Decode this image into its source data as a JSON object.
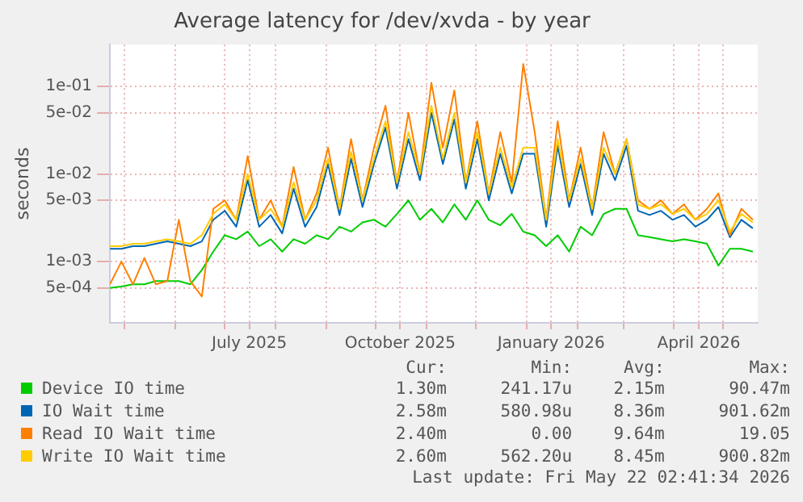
{
  "chart_data": {
    "type": "line",
    "title": "Average latency for /dev/xvda - by year",
    "ylabel": "seconds",
    "log": "y",
    "grid": true,
    "legend": "bottom",
    "marker": "none",
    "line_style": "solid",
    "xlim": [
      "2025-04-22",
      "2026-05-22"
    ],
    "xticks": [
      {
        "value": "2025-05-01",
        "label": null
      },
      {
        "value": "2025-06-01",
        "label": null
      },
      {
        "value": "2025-07-01",
        "label": null
      },
      {
        "value": "2025-07-16",
        "label": "July 2025"
      },
      {
        "value": "2025-08-01",
        "label": null
      },
      {
        "value": "2025-09-01",
        "label": null
      },
      {
        "value": "2025-10-01",
        "label": null
      },
      {
        "value": "2025-10-16",
        "label": "October 2025"
      },
      {
        "value": "2025-11-01",
        "label": null
      },
      {
        "value": "2025-12-01",
        "label": null
      },
      {
        "value": "2026-01-01",
        "label": null
      },
      {
        "value": "2026-01-16",
        "label": "January 2026"
      },
      {
        "value": "2026-02-01",
        "label": null
      },
      {
        "value": "2026-03-01",
        "label": null
      },
      {
        "value": "2026-04-01",
        "label": null
      },
      {
        "value": "2026-04-16",
        "label": "April 2026"
      },
      {
        "value": "2026-05-01",
        "label": null
      }
    ],
    "ylim": [
      0.0002,
      0.3
    ],
    "yticks": [
      {
        "value": 0.0005,
        "label": "5e-04"
      },
      {
        "value": 0.001,
        "label": "1e-03"
      },
      {
        "value": 0.005,
        "label": "5e-03"
      },
      {
        "value": 0.01,
        "label": "1e-02"
      },
      {
        "value": 0.05,
        "label": "5e-02"
      },
      {
        "value": 0.1,
        "label": "1e-01"
      }
    ],
    "x": [
      "2025-04-22",
      "2025-04-29",
      "2025-05-06",
      "2025-05-13",
      "2025-05-20",
      "2025-05-27",
      "2025-06-03",
      "2025-06-10",
      "2025-06-17",
      "2025-06-24",
      "2025-07-01",
      "2025-07-08",
      "2025-07-15",
      "2025-07-22",
      "2025-07-29",
      "2025-08-05",
      "2025-08-12",
      "2025-08-19",
      "2025-08-26",
      "2025-09-02",
      "2025-09-09",
      "2025-09-16",
      "2025-09-23",
      "2025-09-30",
      "2025-10-07",
      "2025-10-14",
      "2025-10-21",
      "2025-10-28",
      "2025-11-04",
      "2025-11-11",
      "2025-11-18",
      "2025-11-25",
      "2025-12-02",
      "2025-12-09",
      "2025-12-16",
      "2025-12-23",
      "2025-12-30",
      "2026-01-06",
      "2026-01-13",
      "2026-01-20",
      "2026-01-27",
      "2026-02-03",
      "2026-02-10",
      "2026-02-17",
      "2026-02-24",
      "2026-03-03",
      "2026-03-10",
      "2026-03-17",
      "2026-03-24",
      "2026-03-31",
      "2026-04-07",
      "2026-04-14",
      "2026-04-21",
      "2026-04-28",
      "2026-05-05",
      "2026-05-12",
      "2026-05-19"
    ],
    "series": [
      {
        "name": "Device IO time",
        "color": "#00cc00",
        "values": [
          0.0005,
          0.00052,
          0.00055,
          0.00055,
          0.0006,
          0.0006,
          0.0006,
          0.00055,
          0.0008,
          0.0013,
          0.002,
          0.0018,
          0.0022,
          0.0015,
          0.0018,
          0.0013,
          0.0018,
          0.0016,
          0.002,
          0.0018,
          0.0025,
          0.0022,
          0.0028,
          0.003,
          0.0025,
          0.0035,
          0.005,
          0.003,
          0.004,
          0.0028,
          0.0045,
          0.003,
          0.005,
          0.003,
          0.0026,
          0.0035,
          0.0022,
          0.002,
          0.0015,
          0.002,
          0.0013,
          0.0025,
          0.002,
          0.0035,
          0.004,
          0.004,
          0.002,
          0.0019,
          0.0018,
          0.0017,
          0.0018,
          0.0017,
          0.0016,
          0.0009,
          0.0014,
          0.0014,
          0.0013
        ]
      },
      {
        "name": "IO Wait time",
        "color": "#0066b3",
        "values": [
          0.0014,
          0.0014,
          0.0015,
          0.0015,
          0.0016,
          0.0017,
          0.0016,
          0.0015,
          0.0017,
          0.003,
          0.0038,
          0.0025,
          0.0085,
          0.0025,
          0.0034,
          0.0021,
          0.0068,
          0.0025,
          0.0042,
          0.013,
          0.0034,
          0.015,
          0.0042,
          0.013,
          0.034,
          0.0068,
          0.025,
          0.0085,
          0.05,
          0.013,
          0.042,
          0.0068,
          0.025,
          0.005,
          0.017,
          0.006,
          0.017,
          0.017,
          0.0025,
          0.021,
          0.0042,
          0.013,
          0.0034,
          0.017,
          0.0085,
          0.021,
          0.0038,
          0.0034,
          0.0038,
          0.003,
          0.0034,
          0.0025,
          0.003,
          0.0042,
          0.0019,
          0.003,
          0.0024
        ]
      },
      {
        "name": "Read IO Wait time",
        "color": "#ff8000",
        "values": [
          0.00055,
          0.001,
          0.00055,
          0.0011,
          0.00055,
          0.0006,
          0.003,
          0.0006,
          0.0004,
          0.004,
          0.005,
          0.003,
          0.016,
          0.003,
          0.005,
          0.0025,
          0.012,
          0.003,
          0.006,
          0.02,
          0.004,
          0.025,
          0.005,
          0.02,
          0.06,
          0.008,
          0.05,
          0.01,
          0.11,
          0.02,
          0.09,
          0.008,
          0.04,
          0.006,
          0.03,
          0.008,
          0.18,
          0.03,
          0.003,
          0.04,
          0.005,
          0.02,
          0.004,
          0.03,
          0.01,
          0.025,
          0.005,
          0.004,
          0.005,
          0.0035,
          0.0045,
          0.003,
          0.004,
          0.006,
          0.002,
          0.004,
          0.003
        ]
      },
      {
        "name": "Write IO Wait time",
        "color": "#ffcc00",
        "values": [
          0.0015,
          0.0015,
          0.0016,
          0.0016,
          0.0017,
          0.0018,
          0.0017,
          0.0016,
          0.002,
          0.0035,
          0.0045,
          0.003,
          0.01,
          0.003,
          0.004,
          0.0025,
          0.008,
          0.003,
          0.005,
          0.015,
          0.004,
          0.018,
          0.005,
          0.015,
          0.04,
          0.008,
          0.03,
          0.01,
          0.06,
          0.015,
          0.05,
          0.008,
          0.03,
          0.006,
          0.02,
          0.007,
          0.02,
          0.02,
          0.003,
          0.025,
          0.005,
          0.015,
          0.004,
          0.02,
          0.01,
          0.025,
          0.0045,
          0.004,
          0.0045,
          0.0035,
          0.004,
          0.003,
          0.0035,
          0.005,
          0.0022,
          0.0035,
          0.0028
        ]
      }
    ],
    "annotations": [
      "Cur:",
      "Min:",
      "Avg:",
      "Max:",
      "1.30m",
      "241.17u",
      "2.15m",
      "90.47m",
      "2.58m",
      "580.98u",
      "8.36m",
      "901.62m",
      "2.40m",
      "0.00",
      "9.64m",
      "19.05",
      "2.60m",
      "562.20u",
      "8.45m",
      "900.82m",
      "Last update: Fri May 22 02:41:34 2026"
    ]
  }
}
